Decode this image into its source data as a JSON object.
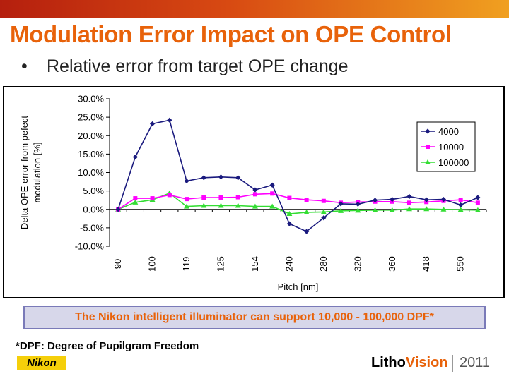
{
  "slide": {
    "title": "Modulation Error Impact on OPE Control",
    "bullet": "Relative error from target OPE change",
    "banner": "The Nikon intelligent illuminator can support 10,000 - 100,000 DPF*",
    "footnote": "*DPF: Degree of Pupilgram Freedom",
    "logo": "Nikon",
    "event_brand_part1": "Litho",
    "event_brand_part2": "Vision",
    "event_year": "2011"
  },
  "colors": {
    "title": "#e8620a",
    "series_4000": "#1a1a7e",
    "series_10000": "#ff00ff",
    "series_100000": "#33dd33"
  },
  "chart_data": {
    "type": "line",
    "xlabel": "Pitch [nm]",
    "ylabel_line1": "Delta OPE error from pefect",
    "ylabel_line2": "modulation  [%]",
    "ylim": [
      -10,
      30
    ],
    "yticks": [
      "-10.0%",
      "-5.0%",
      "0.0%",
      "5.0%",
      "10.0%",
      "15.0%",
      "20.0%",
      "25.0%",
      "30.0%"
    ],
    "x_tick_labels": [
      "90",
      "100",
      "119",
      "125",
      "154",
      "240",
      "280",
      "320",
      "360",
      "418",
      "550"
    ],
    "grid": false,
    "legend": "right",
    "series": [
      {
        "name": "4000",
        "marker": "diamond",
        "values": [
          0,
          14.2,
          23.2,
          24.2,
          7.7,
          8.6,
          8.8,
          8.6,
          5.3,
          6.6,
          -3.9,
          -6.0,
          -2.3,
          1.5,
          1.4,
          2.5,
          2.7,
          3.5,
          2.6,
          2.7,
          1.2,
          3.2
        ]
      },
      {
        "name": "10000",
        "marker": "square",
        "values": [
          0,
          3.0,
          3.0,
          3.9,
          2.8,
          3.2,
          3.2,
          3.3,
          4.1,
          4.3,
          3.1,
          2.6,
          2.3,
          1.8,
          2.0,
          2.1,
          2.1,
          1.8,
          2.0,
          2.3,
          2.6,
          1.8
        ]
      },
      {
        "name": "100000",
        "marker": "triangle",
        "values": [
          0,
          1.9,
          2.6,
          4.4,
          0.8,
          1.0,
          1.0,
          1.0,
          0.8,
          0.8,
          -1.2,
          -0.8,
          -0.7,
          -0.4,
          -0.3,
          -0.2,
          -0.2,
          0.1,
          0.1,
          0.0,
          -0.1,
          -0.2
        ]
      }
    ]
  }
}
